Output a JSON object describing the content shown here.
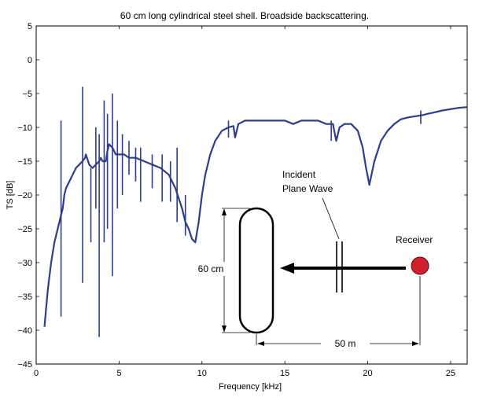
{
  "chart_data": {
    "type": "line",
    "title": "60 cm long cylindrical steel shell. Broadside backscattering.",
    "xlabel": "Frequency [kHz]",
    "ylabel": "TS [dB]",
    "xlim": [
      0,
      26
    ],
    "ylim": [
      -45,
      5
    ],
    "xticks": [
      0,
      5,
      10,
      15,
      20,
      25
    ],
    "yticks": [
      5,
      0,
      -5,
      -10,
      -15,
      -20,
      -25,
      -30,
      -35,
      -40,
      -45
    ],
    "ytick_labels": [
      "5",
      "0",
      "−5",
      "−10",
      "−15",
      "−20",
      "−25",
      "−30",
      "−35",
      "−40",
      "−45"
    ],
    "grid": false,
    "series": [
      {
        "color": "#2c3d8f",
        "x": [
          0.5,
          0.7,
          0.9,
          1.1,
          1.3,
          1.5,
          1.6,
          1.65,
          1.7,
          1.8,
          2.0,
          2.2,
          2.4,
          2.6,
          2.8,
          2.95,
          3.0,
          3.2,
          3.4,
          3.6,
          3.8,
          3.9,
          4.0,
          4.2,
          4.3,
          4.4,
          4.6,
          4.8,
          5.0,
          5.3,
          5.6,
          6.0,
          6.5,
          7.0,
          7.5,
          8.0,
          8.4,
          8.8,
          9.0,
          9.2,
          9.4,
          9.6,
          9.8,
          10.0,
          10.2,
          10.5,
          10.8,
          11.2,
          11.6,
          11.9,
          12.0,
          12.2,
          12.6,
          13.0,
          13.5,
          14.0,
          14.5,
          15.0,
          15.5,
          16.0,
          16.5,
          17.0,
          17.5,
          17.9,
          18.1,
          18.3,
          18.6,
          19.0,
          19.4,
          19.7,
          19.9,
          20.1,
          20.4,
          20.8,
          21.2,
          21.6,
          22.0,
          22.5,
          23.0,
          23.3,
          23.6,
          24.0,
          24.5,
          25.0,
          25.5,
          26.0
        ],
        "y": [
          -39.5,
          -34,
          -30,
          -27,
          -25,
          -23,
          -22,
          -21,
          -20,
          -19,
          -18,
          -17,
          -16,
          -15.5,
          -15,
          -14.5,
          -14,
          -15.5,
          -16,
          -15.5,
          -15,
          -14.5,
          -15,
          -15,
          -13.5,
          -12.5,
          -13,
          -14,
          -14,
          -14,
          -14.5,
          -14.5,
          -15,
          -15.5,
          -16,
          -17,
          -19,
          -22,
          -24,
          -25,
          -26.5,
          -27,
          -24,
          -20,
          -17,
          -14,
          -12,
          -10.5,
          -10,
          -9.8,
          -11.5,
          -9.5,
          -9,
          -9,
          -9,
          -9,
          -9,
          -9,
          -9.5,
          -9,
          -9,
          -9,
          -9.5,
          -9.5,
          -12,
          -10,
          -9.5,
          -9.5,
          -10.5,
          -13,
          -16,
          -18.5,
          -15,
          -12,
          -10.5,
          -9.5,
          -8.8,
          -8.5,
          -8.3,
          -8.2,
          -8.0,
          -7.8,
          -7.5,
          -7.3,
          -7.1,
          -7.0
        ]
      }
    ],
    "spikes": [
      {
        "x": 1.5,
        "y_low": -38,
        "y_high": -9
      },
      {
        "x": 2.8,
        "y_low": -33,
        "y_high": -4
      },
      {
        "x": 3.3,
        "y_low": -27,
        "y_high": -16
      },
      {
        "x": 3.6,
        "y_low": -22,
        "y_high": -10
      },
      {
        "x": 3.8,
        "y_low": -41,
        "y_high": -11
      },
      {
        "x": 4.1,
        "y_low": -27,
        "y_high": -6
      },
      {
        "x": 4.3,
        "y_low": -25,
        "y_high": -8
      },
      {
        "x": 4.6,
        "y_low": -32,
        "y_high": -5
      },
      {
        "x": 4.9,
        "y_low": -22,
        "y_high": -9
      },
      {
        "x": 5.2,
        "y_low": -20,
        "y_high": -11
      },
      {
        "x": 5.6,
        "y_low": -17,
        "y_high": -12
      },
      {
        "x": 6.0,
        "y_low": -18,
        "y_high": -13
      },
      {
        "x": 6.3,
        "y_low": -21,
        "y_high": -13
      },
      {
        "x": 7.0,
        "y_low": -19,
        "y_high": -14
      },
      {
        "x": 7.6,
        "y_low": -21,
        "y_high": -14
      },
      {
        "x": 8.1,
        "y_low": -21,
        "y_high": -15
      },
      {
        "x": 8.5,
        "y_low": -24,
        "y_high": -13
      },
      {
        "x": 9.0,
        "y_low": -26,
        "y_high": -20
      },
      {
        "x": 11.6,
        "y_low": -11.5,
        "y_high": -9
      },
      {
        "x": 17.8,
        "y_low": -12,
        "y_high": -9
      },
      {
        "x": 23.2,
        "y_low": -9.5,
        "y_high": -7.5
      }
    ]
  },
  "diagram": {
    "length_label": "60 cm",
    "distance_label": "50 m",
    "wave_label_line1": "Incident",
    "wave_label_line2": "Plane Wave",
    "receiver_label": "Receiver",
    "receiver_color": "#d0202e"
  }
}
